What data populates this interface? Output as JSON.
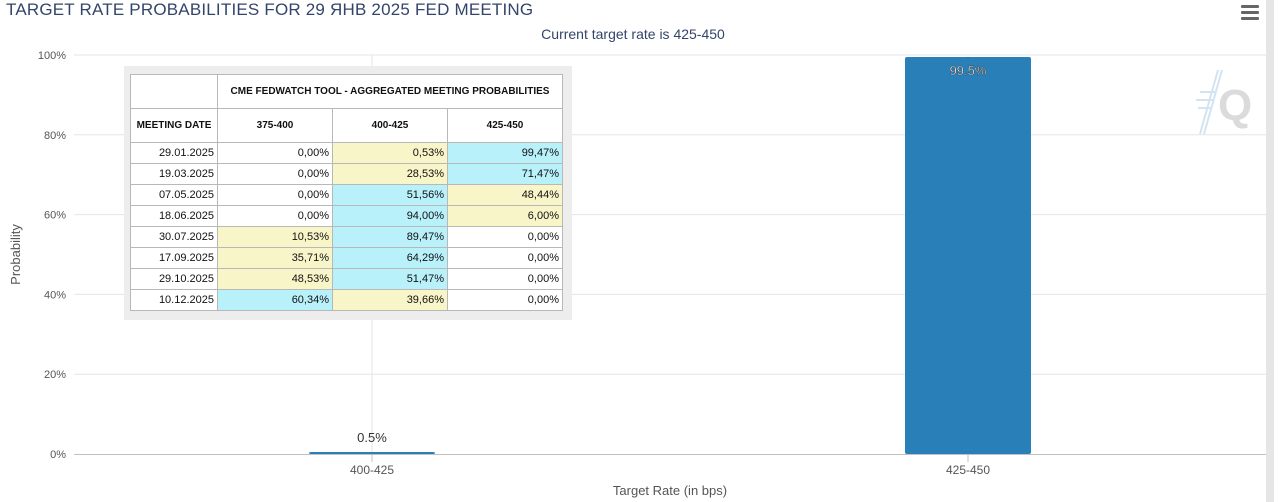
{
  "header": {
    "title": "TARGET RATE PROBABILITIES FOR 29 ЯНВ 2025 FED MEETING",
    "subtitle": "Current target rate is 425-450"
  },
  "chart_data": {
    "type": "bar",
    "categories": [
      "400-425",
      "425-450"
    ],
    "values": [
      0.5,
      99.5
    ],
    "value_labels": [
      "0.5%",
      "99.5%"
    ],
    "xlabel": "Target Rate (in bps)",
    "ylabel": "Probability",
    "ylim": [
      0,
      100
    ],
    "yticks": [
      "0%",
      "20%",
      "40%",
      "60%",
      "80%",
      "100%"
    ],
    "grid": true,
    "bar_color": "#2980b9"
  },
  "table": {
    "title": "CME FEDWATCH TOOL - AGGREGATED MEETING PROBABILITIES",
    "date_header": "MEETING DATE",
    "rate_headers": [
      "375-400",
      "400-425",
      "425-450"
    ],
    "rows": [
      {
        "date": "29.01.2025",
        "cells": [
          "0,00%",
          "0,53%",
          "99,47%"
        ],
        "shade": [
          "",
          "y",
          "b"
        ]
      },
      {
        "date": "19.03.2025",
        "cells": [
          "0,00%",
          "28,53%",
          "71,47%"
        ],
        "shade": [
          "",
          "y",
          "b"
        ]
      },
      {
        "date": "07.05.2025",
        "cells": [
          "0,00%",
          "51,56%",
          "48,44%"
        ],
        "shade": [
          "",
          "b",
          "y"
        ]
      },
      {
        "date": "18.06.2025",
        "cells": [
          "0,00%",
          "94,00%",
          "6,00%"
        ],
        "shade": [
          "",
          "b",
          "y"
        ]
      },
      {
        "date": "30.07.2025",
        "cells": [
          "10,53%",
          "89,47%",
          "0,00%"
        ],
        "shade": [
          "y",
          "b",
          ""
        ]
      },
      {
        "date": "17.09.2025",
        "cells": [
          "35,71%",
          "64,29%",
          "0,00%"
        ],
        "shade": [
          "y",
          "b",
          ""
        ]
      },
      {
        "date": "29.10.2025",
        "cells": [
          "48,53%",
          "51,47%",
          "0,00%"
        ],
        "shade": [
          "y",
          "b",
          ""
        ]
      },
      {
        "date": "10.12.2025",
        "cells": [
          "60,34%",
          "39,66%",
          "0,00%"
        ],
        "shade": [
          "b",
          "y",
          ""
        ]
      }
    ]
  },
  "icons": {
    "menu": "hamburger-menu-icon",
    "watermark": "quikstrike-logo"
  }
}
